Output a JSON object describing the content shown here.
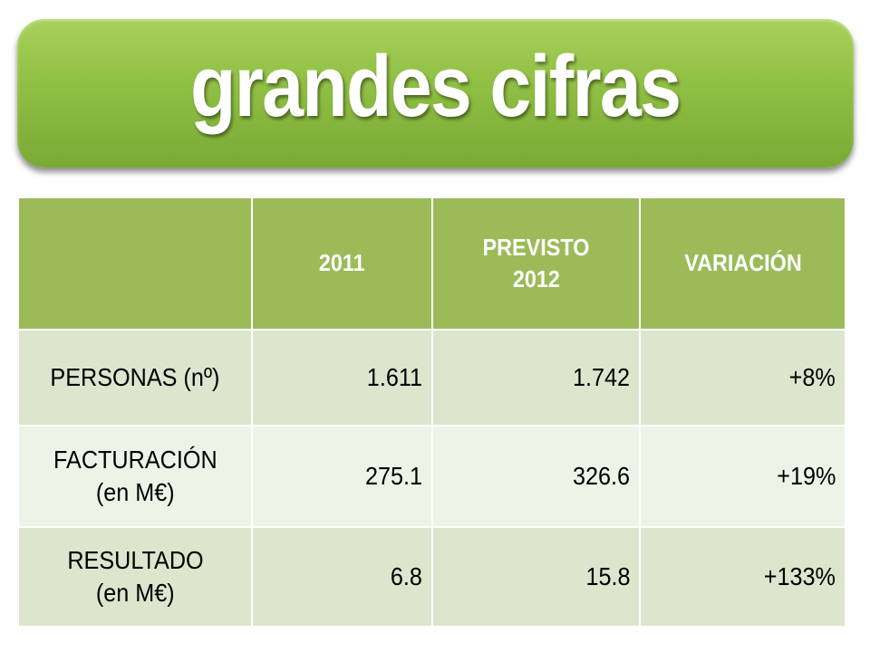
{
  "title": "grandes cifras",
  "colors": {
    "banner_green": "#8fbf43",
    "header_green": "#9bbb59",
    "row_dark": "#dce6cd",
    "row_light": "#eef3e8",
    "header_text": "#ffffff"
  },
  "table": {
    "headers": [
      "",
      "2011",
      "PREVISTO 2012",
      "VARIACIÓN"
    ],
    "header_lines": {
      "col2_line1": "PREVISTO",
      "col2_line2": "2012"
    },
    "rows": [
      {
        "label_line1": "PERSONAS (nº)",
        "label_line2": "",
        "v2011": "1.611",
        "v2012": "1.742",
        "variation": "+8%"
      },
      {
        "label_line1": "FACTURACIÓN",
        "label_line2": "(en M€)",
        "v2011": "275.1",
        "v2012": "326.6",
        "variation": "+19%"
      },
      {
        "label_line1": "RESULTADO",
        "label_line2": "(en M€)",
        "v2011": "6.8",
        "v2012": "15.8",
        "variation": "+133%"
      }
    ]
  }
}
